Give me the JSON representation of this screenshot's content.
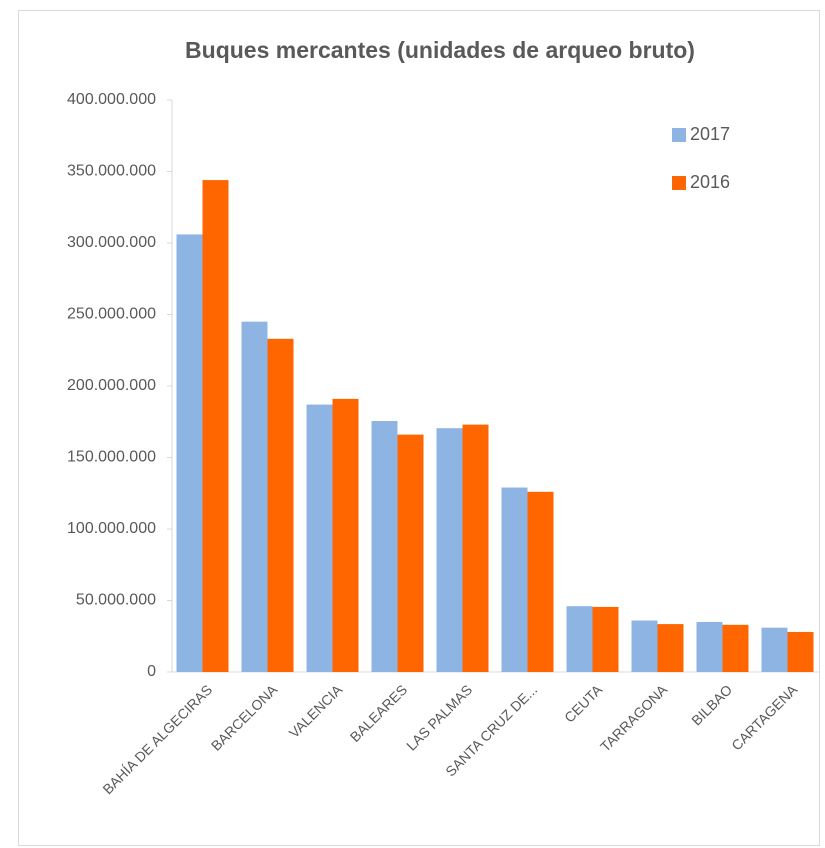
{
  "chart_data": {
    "type": "bar",
    "title": "Buques mercantes (unidades de arqueo bruto)",
    "categories": [
      "BAHÍA DE ALGECIRAS",
      "BARCELONA",
      "VALENCIA",
      "BALEARES",
      "LAS PALMAS",
      "SANTA CRUZ DE...",
      "CEUTA",
      "TARRAGONA",
      "BILBAO",
      "CARTAGENA"
    ],
    "series": [
      {
        "name": "2017",
        "color": "#8eb4e3",
        "values": [
          306000000,
          245000000,
          187000000,
          175500000,
          170500000,
          129000000,
          46000000,
          36000000,
          35000000,
          31000000
        ]
      },
      {
        "name": "2016",
        "color": "#ff6600",
        "values": [
          344000000,
          233000000,
          191000000,
          166000000,
          173000000,
          126000000,
          45500000,
          33500000,
          33000000,
          28000000
        ]
      }
    ],
    "ylim": [
      0,
      400000000
    ],
    "yticks": [
      0,
      {
        "value": 50000000,
        "label": "50.000.000"
      },
      {
        "value": 100000000,
        "label": "100.000.000"
      },
      {
        "value": 150000000,
        "label": "150.000.000"
      },
      {
        "value": 200000000,
        "label": "200.000.000"
      },
      {
        "value": 250000000,
        "label": "250.000.000"
      },
      {
        "value": 300000000,
        "label": "300.000.000"
      },
      {
        "value": 350000000,
        "label": "350.000.000"
      },
      {
        "value": 400000000,
        "label": "400.000.000"
      }
    ],
    "grid": false,
    "legend": "top-right"
  }
}
